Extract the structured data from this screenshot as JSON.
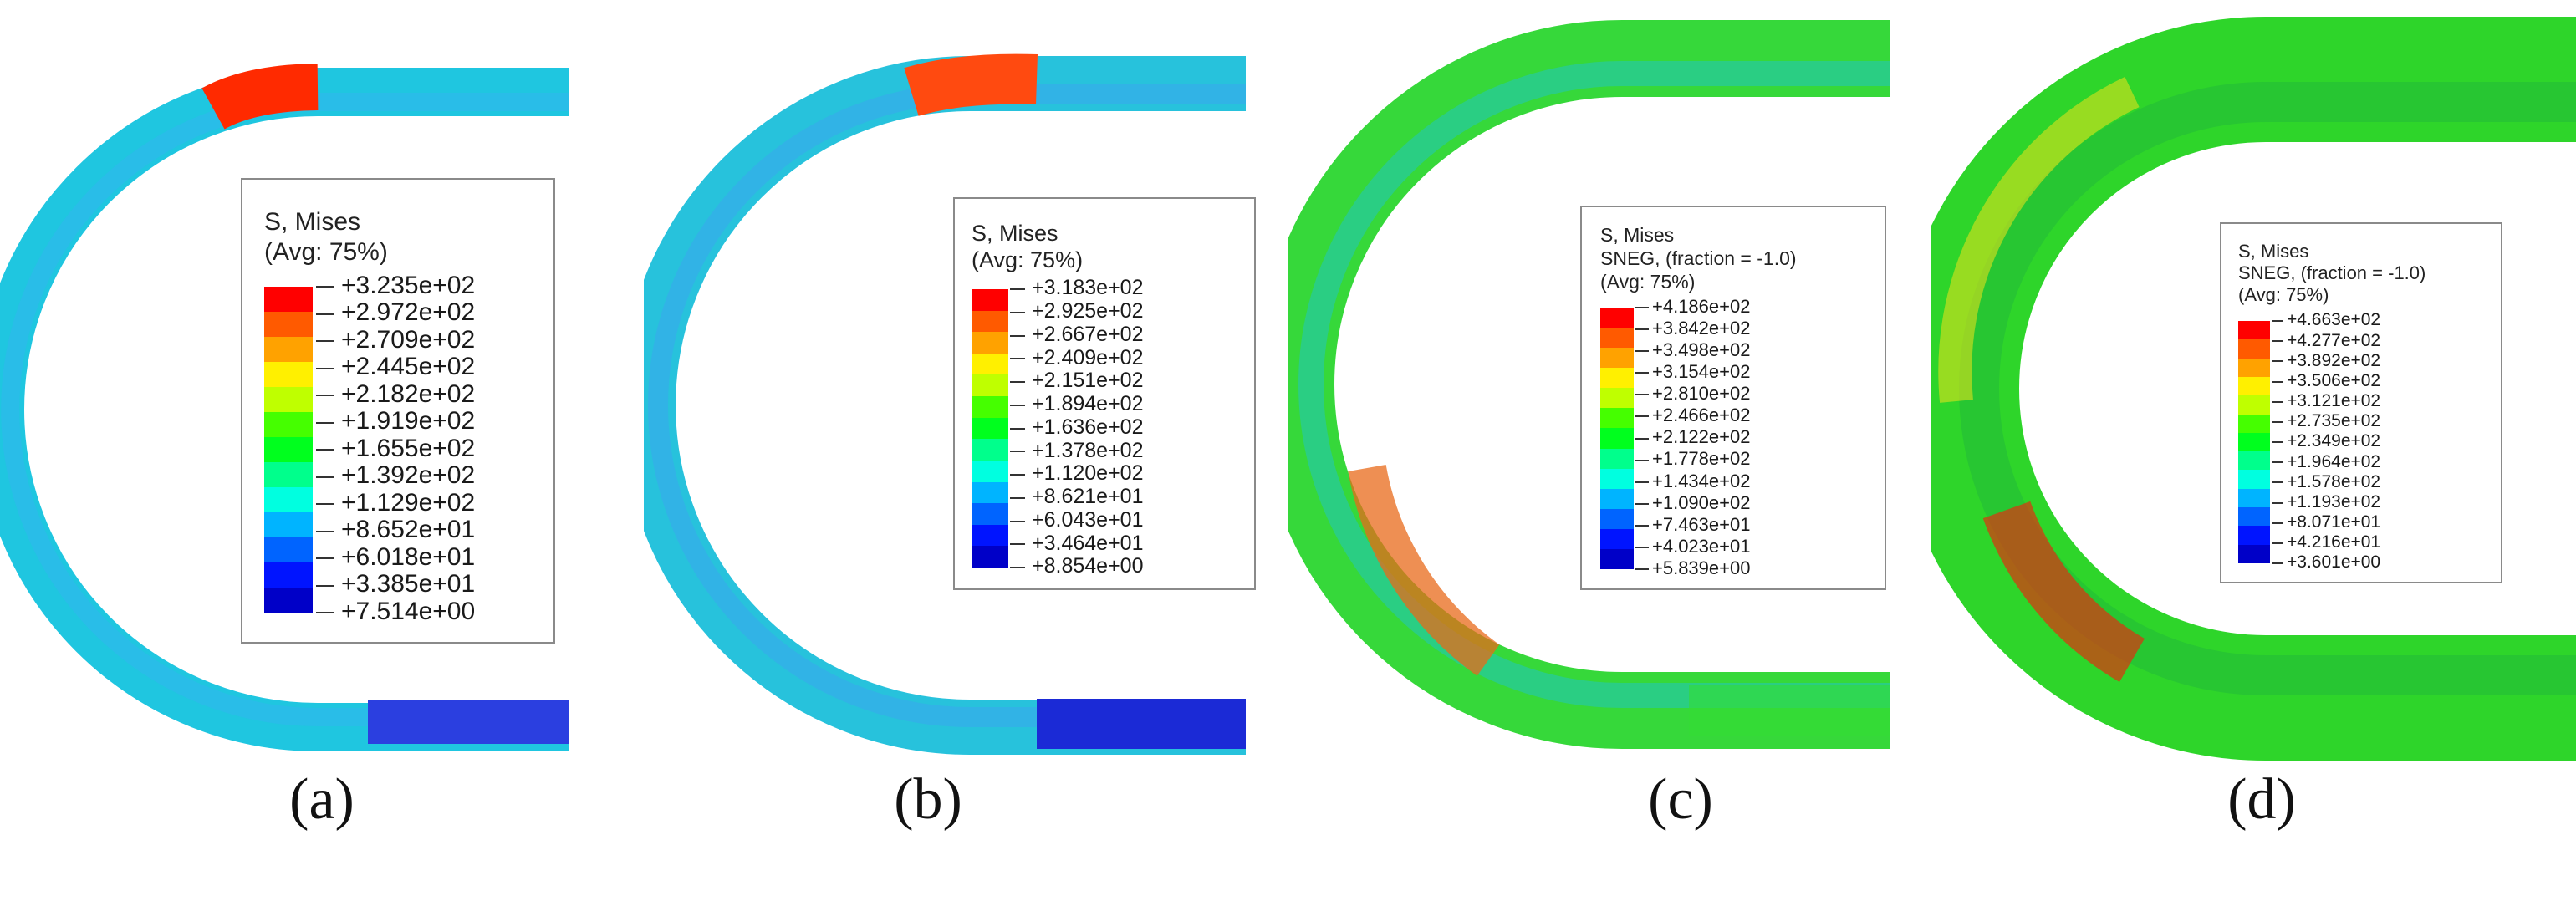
{
  "panels": [
    {
      "caption": "(a)",
      "legend": {
        "title_lines": [
          "S, Mises",
          "(Avg: 75%)"
        ],
        "values": [
          "+3.235e+02",
          "+2.972e+02",
          "+2.709e+02",
          "+2.445e+02",
          "+2.182e+02",
          "+1.919e+02",
          "+1.655e+02",
          "+1.392e+02",
          "+1.129e+02",
          "+8.652e+01",
          "+6.018e+01",
          "+3.385e+01",
          "+7.514e+00"
        ]
      },
      "tube_colors": [
        "#1fc6e0",
        "#31b7ef",
        "#ff2a00",
        "#2b3fe0"
      ]
    },
    {
      "caption": "(b)",
      "legend": {
        "title_lines": [
          "S, Mises",
          "(Avg: 75%)"
        ],
        "values": [
          "+3.183e+02",
          "+2.925e+02",
          "+2.667e+02",
          "+2.409e+02",
          "+2.151e+02",
          "+1.894e+02",
          "+1.636e+02",
          "+1.378e+02",
          "+1.120e+02",
          "+8.621e+01",
          "+6.043e+01",
          "+3.464e+01",
          "+8.854e+00"
        ]
      },
      "tube_colors": [
        "#27c2dc",
        "#3aa8ef",
        "#ff4a10",
        "#1b2ad6"
      ]
    },
    {
      "caption": "(c)",
      "legend": {
        "title_lines": [
          "S, Mises",
          "SNEG, (fraction = -1.0)",
          "(Avg: 75%)"
        ],
        "values": [
          "+4.186e+02",
          "+3.842e+02",
          "+3.498e+02",
          "+3.154e+02",
          "+2.810e+02",
          "+2.466e+02",
          "+2.122e+02",
          "+1.778e+02",
          "+1.434e+02",
          "+1.090e+02",
          "+7.463e+01",
          "+4.023e+01",
          "+5.839e+00"
        ]
      },
      "tube_colors": [
        "#36d83a",
        "#20c6c0",
        "#e86a1a",
        "#33dd33"
      ]
    },
    {
      "caption": "(d)",
      "legend": {
        "title_lines": [
          "S, Mises",
          "SNEG, (fraction = -1.0)",
          "(Avg: 75%)"
        ],
        "values": [
          "+4.663e+02",
          "+4.277e+02",
          "+3.892e+02",
          "+3.506e+02",
          "+3.121e+02",
          "+2.735e+02",
          "+2.349e+02",
          "+1.964e+02",
          "+1.578e+02",
          "+1.193e+02",
          "+8.071e+01",
          "+4.216e+01",
          "+3.601e+00"
        ]
      },
      "tube_colors": [
        "#2ed52a",
        "#1fb83a",
        "#e03010",
        "#30d838"
      ]
    }
  ],
  "legend_colors": [
    "#ff0000",
    "#ff5a00",
    "#ffa200",
    "#fff000",
    "#bfff00",
    "#45ff00",
    "#00ff1e",
    "#00ff8c",
    "#00ffe0",
    "#00b4ff",
    "#0064ff",
    "#0014ff",
    "#0000c8"
  ]
}
